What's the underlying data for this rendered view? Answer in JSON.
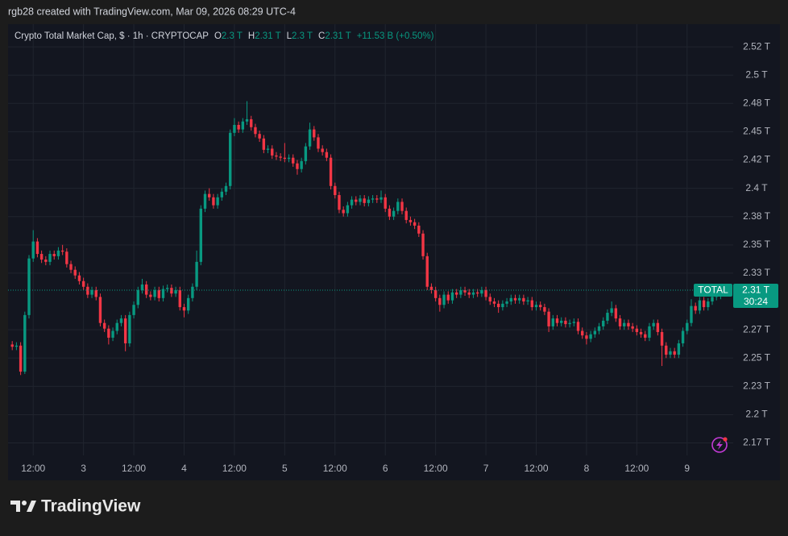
{
  "header": "rgb28 created with TradingView.com, Mar 09, 2026 08:29 UTC-4",
  "footer": {
    "brand": "TradingView"
  },
  "chart_data": {
    "type": "candlestick",
    "legend": {
      "symbol": "Crypto Total Market Cap, $ · 1h · CRYPTOCAP",
      "o_key": "O",
      "o": "2.3 T",
      "h_key": "H",
      "h": "2.31 T",
      "l_key": "L",
      "l": "2.3 T",
      "c_key": "C",
      "c": "2.31 T",
      "change": "+11.53 B (+0.50%)"
    },
    "last_price": {
      "tag": "TOTAL",
      "label": "2.31 T",
      "countdown": "30:24"
    },
    "up_color": "#089981",
    "down_color": "#f23645",
    "grid": true,
    "xlim": [
      -1,
      172
    ],
    "xticks": [
      {
        "value": 5,
        "label": "12:00"
      },
      {
        "value": 17,
        "label": "3"
      },
      {
        "value": 29,
        "label": "12:00"
      },
      {
        "value": 41,
        "label": "4"
      },
      {
        "value": 53,
        "label": "12:00"
      },
      {
        "value": 65,
        "label": "5"
      },
      {
        "value": 77,
        "label": "12:00"
      },
      {
        "value": 89,
        "label": "6"
      },
      {
        "value": 101,
        "label": "12:00"
      },
      {
        "value": 113,
        "label": "7"
      },
      {
        "value": 125,
        "label": "12:00"
      },
      {
        "value": 137,
        "label": "8"
      },
      {
        "value": 149,
        "label": "12:00"
      },
      {
        "value": 161,
        "label": "9"
      }
    ],
    "ylim": [
      2.164,
      2.545
    ],
    "yticks": [
      {
        "value": 2.525,
        "label": "2.52 T"
      },
      {
        "value": 2.5,
        "label": "2.5 T"
      },
      {
        "value": 2.475,
        "label": "2.48 T"
      },
      {
        "value": 2.45,
        "label": "2.45 T"
      },
      {
        "value": 2.425,
        "label": "2.42 T"
      },
      {
        "value": 2.4,
        "label": "2.4 T"
      },
      {
        "value": 2.375,
        "label": "2.38 T"
      },
      {
        "value": 2.35,
        "label": "2.35 T"
      },
      {
        "value": 2.325,
        "label": "2.33 T"
      },
      {
        "value": 2.275,
        "label": "2.27 T"
      },
      {
        "value": 2.25,
        "label": "2.25 T"
      },
      {
        "value": 2.225,
        "label": "2.23 T"
      },
      {
        "value": 2.2,
        "label": "2.2 T"
      },
      {
        "value": 2.175,
        "label": "2.17 T"
      }
    ],
    "ohlc": [
      [
        2.262,
        2.265,
        2.257,
        2.26
      ],
      [
        2.26,
        2.264,
        2.257,
        2.261
      ],
      [
        2.261,
        2.264,
        2.235,
        2.238
      ],
      [
        2.238,
        2.291,
        2.236,
        2.288
      ],
      [
        2.288,
        2.341,
        2.285,
        2.338
      ],
      [
        2.338,
        2.363,
        2.335,
        2.353
      ],
      [
        2.353,
        2.356,
        2.339,
        2.342
      ],
      [
        2.342,
        2.345,
        2.334,
        2.337
      ],
      [
        2.337,
        2.34,
        2.332,
        2.335
      ],
      [
        2.335,
        2.345,
        2.332,
        2.342
      ],
      [
        2.342,
        2.345,
        2.337,
        2.34
      ],
      [
        2.34,
        2.348,
        2.337,
        2.345
      ],
      [
        2.345,
        2.35,
        2.341,
        2.344
      ],
      [
        2.344,
        2.347,
        2.33,
        2.333
      ],
      [
        2.333,
        2.336,
        2.325,
        2.328
      ],
      [
        2.328,
        2.331,
        2.32,
        2.323
      ],
      [
        2.323,
        2.326,
        2.315,
        2.318
      ],
      [
        2.318,
        2.321,
        2.31,
        2.313
      ],
      [
        2.313,
        2.316,
        2.303,
        2.306
      ],
      [
        2.306,
        2.313,
        2.303,
        2.31
      ],
      [
        2.31,
        2.313,
        2.301,
        2.304
      ],
      [
        2.304,
        2.307,
        2.278,
        2.281
      ],
      [
        2.281,
        2.284,
        2.273,
        2.276
      ],
      [
        2.276,
        2.279,
        2.262,
        2.268
      ],
      [
        2.268,
        2.277,
        2.265,
        2.274
      ],
      [
        2.274,
        2.284,
        2.271,
        2.281
      ],
      [
        2.281,
        2.288,
        2.278,
        2.285
      ],
      [
        2.285,
        2.288,
        2.256,
        2.263
      ],
      [
        2.263,
        2.291,
        2.26,
        2.288
      ],
      [
        2.288,
        2.3,
        2.285,
        2.297
      ],
      [
        2.297,
        2.313,
        2.294,
        2.31
      ],
      [
        2.31,
        2.32,
        2.307,
        2.315
      ],
      [
        2.315,
        2.318,
        2.303,
        2.306
      ],
      [
        2.306,
        2.309,
        2.301,
        2.304
      ],
      [
        2.304,
        2.313,
        2.301,
        2.31
      ],
      [
        2.31,
        2.313,
        2.3,
        2.303
      ],
      [
        2.303,
        2.314,
        2.3,
        2.311
      ],
      [
        2.311,
        2.315,
        2.308,
        2.312
      ],
      [
        2.312,
        2.315,
        2.304,
        2.307
      ],
      [
        2.307,
        2.313,
        2.304,
        2.31
      ],
      [
        2.31,
        2.313,
        2.292,
        2.295
      ],
      [
        2.295,
        2.298,
        2.286,
        2.292
      ],
      [
        2.292,
        2.306,
        2.289,
        2.303
      ],
      [
        2.303,
        2.316,
        2.3,
        2.313
      ],
      [
        2.313,
        2.345,
        2.31,
        2.335
      ],
      [
        2.335,
        2.385,
        2.332,
        2.382
      ],
      [
        2.382,
        2.398,
        2.379,
        2.395
      ],
      [
        2.395,
        2.4,
        2.389,
        2.392
      ],
      [
        2.392,
        2.395,
        2.382,
        2.385
      ],
      [
        2.385,
        2.395,
        2.382,
        2.392
      ],
      [
        2.392,
        2.4,
        2.389,
        2.397
      ],
      [
        2.397,
        2.405,
        2.394,
        2.402
      ],
      [
        2.402,
        2.452,
        2.399,
        2.449
      ],
      [
        2.449,
        2.462,
        2.446,
        2.456
      ],
      [
        2.456,
        2.459,
        2.449,
        2.452
      ],
      [
        2.452,
        2.462,
        2.449,
        2.459
      ],
      [
        2.459,
        2.477,
        2.456,
        2.461
      ],
      [
        2.461,
        2.464,
        2.451,
        2.454
      ],
      [
        2.454,
        2.457,
        2.445,
        2.448
      ],
      [
        2.448,
        2.451,
        2.441,
        2.444
      ],
      [
        2.444,
        2.447,
        2.431,
        2.434
      ],
      [
        2.434,
        2.438,
        2.431,
        2.435
      ],
      [
        2.435,
        2.438,
        2.426,
        2.429
      ],
      [
        2.429,
        2.432,
        2.425,
        2.428
      ],
      [
        2.428,
        2.431,
        2.424,
        2.427
      ],
      [
        2.427,
        2.44,
        2.423,
        2.426
      ],
      [
        2.426,
        2.43,
        2.423,
        2.427
      ],
      [
        2.427,
        2.43,
        2.419,
        2.422
      ],
      [
        2.422,
        2.425,
        2.412,
        2.417
      ],
      [
        2.417,
        2.427,
        2.414,
        2.424
      ],
      [
        2.424,
        2.44,
        2.421,
        2.437
      ],
      [
        2.437,
        2.458,
        2.434,
        2.452
      ],
      [
        2.452,
        2.455,
        2.442,
        2.445
      ],
      [
        2.445,
        2.448,
        2.432,
        2.435
      ],
      [
        2.435,
        2.438,
        2.429,
        2.432
      ],
      [
        2.432,
        2.435,
        2.424,
        2.427
      ],
      [
        2.427,
        2.43,
        2.399,
        2.402
      ],
      [
        2.402,
        2.405,
        2.391,
        2.394
      ],
      [
        2.394,
        2.397,
        2.378,
        2.381
      ],
      [
        2.381,
        2.384,
        2.375,
        2.378
      ],
      [
        2.378,
        2.388,
        2.375,
        2.385
      ],
      [
        2.385,
        2.393,
        2.382,
        2.39
      ],
      [
        2.39,
        2.393,
        2.385,
        2.388
      ],
      [
        2.388,
        2.394,
        2.385,
        2.391
      ],
      [
        2.391,
        2.394,
        2.384,
        2.387
      ],
      [
        2.387,
        2.393,
        2.384,
        2.39
      ],
      [
        2.39,
        2.394,
        2.387,
        2.391
      ],
      [
        2.391,
        2.394,
        2.387,
        2.39
      ],
      [
        2.39,
        2.398,
        2.387,
        2.392
      ],
      [
        2.392,
        2.395,
        2.379,
        2.382
      ],
      [
        2.382,
        2.385,
        2.372,
        2.375
      ],
      [
        2.375,
        2.383,
        2.372,
        2.38
      ],
      [
        2.38,
        2.391,
        2.377,
        2.388
      ],
      [
        2.388,
        2.391,
        2.377,
        2.38
      ],
      [
        2.38,
        2.383,
        2.369,
        2.372
      ],
      [
        2.372,
        2.375,
        2.367,
        2.37
      ],
      [
        2.37,
        2.373,
        2.364,
        2.367
      ],
      [
        2.367,
        2.37,
        2.357,
        2.36
      ],
      [
        2.36,
        2.363,
        2.337,
        2.34
      ],
      [
        2.34,
        2.343,
        2.31,
        2.313
      ],
      [
        2.313,
        2.316,
        2.307,
        2.31
      ],
      [
        2.31,
        2.313,
        2.3,
        2.303
      ],
      [
        2.303,
        2.306,
        2.291,
        2.297
      ],
      [
        2.297,
        2.309,
        2.294,
        2.306
      ],
      [
        2.306,
        2.309,
        2.298,
        2.301
      ],
      [
        2.301,
        2.311,
        2.298,
        2.308
      ],
      [
        2.308,
        2.311,
        2.303,
        2.306
      ],
      [
        2.306,
        2.313,
        2.303,
        2.31
      ],
      [
        2.31,
        2.313,
        2.305,
        2.308
      ],
      [
        2.308,
        2.311,
        2.303,
        2.306
      ],
      [
        2.306,
        2.311,
        2.303,
        2.308
      ],
      [
        2.308,
        2.311,
        2.304,
        2.307
      ],
      [
        2.307,
        2.313,
        2.304,
        2.31
      ],
      [
        2.31,
        2.313,
        2.301,
        2.304
      ],
      [
        2.304,
        2.307,
        2.297,
        2.3
      ],
      [
        2.3,
        2.303,
        2.295,
        2.298
      ],
      [
        2.298,
        2.301,
        2.29,
        2.295
      ],
      [
        2.295,
        2.301,
        2.292,
        2.298
      ],
      [
        2.298,
        2.303,
        2.295,
        2.3
      ],
      [
        2.3,
        2.306,
        2.297,
        2.303
      ],
      [
        2.303,
        2.306,
        2.298,
        2.301
      ],
      [
        2.301,
        2.306,
        2.298,
        2.303
      ],
      [
        2.303,
        2.306,
        2.297,
        2.3
      ],
      [
        2.3,
        2.304,
        2.297,
        2.301
      ],
      [
        2.301,
        2.304,
        2.292,
        2.295
      ],
      [
        2.295,
        2.3,
        2.292,
        2.297
      ],
      [
        2.297,
        2.3,
        2.292,
        2.295
      ],
      [
        2.295,
        2.298,
        2.288,
        2.291
      ],
      [
        2.291,
        2.294,
        2.273,
        2.278
      ],
      [
        2.278,
        2.288,
        2.275,
        2.285
      ],
      [
        2.285,
        2.288,
        2.278,
        2.281
      ],
      [
        2.281,
        2.286,
        2.278,
        2.283
      ],
      [
        2.283,
        2.286,
        2.277,
        2.28
      ],
      [
        2.28,
        2.284,
        2.277,
        2.281
      ],
      [
        2.281,
        2.285,
        2.278,
        2.282
      ],
      [
        2.282,
        2.285,
        2.271,
        2.274
      ],
      [
        2.274,
        2.277,
        2.267,
        2.27
      ],
      [
        2.27,
        2.273,
        2.262,
        2.267
      ],
      [
        2.267,
        2.274,
        2.264,
        2.271
      ],
      [
        2.271,
        2.277,
        2.268,
        2.274
      ],
      [
        2.274,
        2.281,
        2.271,
        2.278
      ],
      [
        2.278,
        2.286,
        2.275,
        2.283
      ],
      [
        2.283,
        2.293,
        2.28,
        2.29
      ],
      [
        2.29,
        2.3,
        2.287,
        2.294
      ],
      [
        2.294,
        2.297,
        2.282,
        2.285
      ],
      [
        2.285,
        2.288,
        2.275,
        2.278
      ],
      [
        2.278,
        2.284,
        2.275,
        2.281
      ],
      [
        2.281,
        2.284,
        2.275,
        2.278
      ],
      [
        2.278,
        2.281,
        2.273,
        2.276
      ],
      [
        2.276,
        2.279,
        2.27,
        2.273
      ],
      [
        2.273,
        2.276,
        2.268,
        2.271
      ],
      [
        2.271,
        2.274,
        2.265,
        2.268
      ],
      [
        2.268,
        2.281,
        2.265,
        2.278
      ],
      [
        2.278,
        2.284,
        2.275,
        2.281
      ],
      [
        2.281,
        2.284,
        2.27,
        2.273
      ],
      [
        2.273,
        2.276,
        2.243,
        2.261
      ],
      [
        2.261,
        2.264,
        2.25,
        2.253
      ],
      [
        2.253,
        2.259,
        2.25,
        2.256
      ],
      [
        2.256,
        2.259,
        2.25,
        2.253
      ],
      [
        2.253,
        2.266,
        2.25,
        2.263
      ],
      [
        2.263,
        2.277,
        2.26,
        2.274
      ],
      [
        2.274,
        2.284,
        2.271,
        2.281
      ],
      [
        2.281,
        2.302,
        2.278,
        2.296
      ],
      [
        2.296,
        2.299,
        2.289,
        2.292
      ],
      [
        2.292,
        2.304,
        2.289,
        2.301
      ],
      [
        2.301,
        2.304,
        2.292,
        2.295
      ],
      [
        2.295,
        2.303,
        2.292,
        2.3
      ],
      [
        2.3,
        2.307,
        2.297,
        2.304
      ],
      [
        2.304,
        2.308,
        2.301,
        2.305
      ],
      [
        2.305,
        2.313,
        2.302,
        2.31
      ]
    ]
  }
}
